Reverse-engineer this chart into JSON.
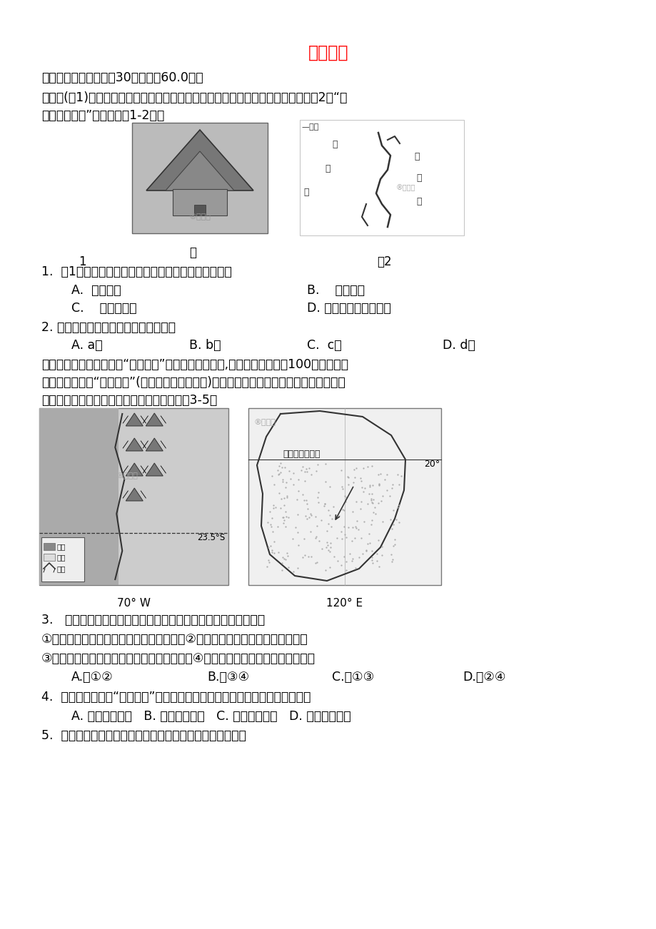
{
  "title": "地理试题",
  "title_color": "#FF0000",
  "bg_color": "#FFFFFF",
  "text_color": "#000000",
  "section1": "一、单选题（本大题入30小题，入60.0分）",
  "para1": "合掌造(图1)是日本的一种木造建筑物，屋顶厚且陨，以便适应当地的地理环境。图2为“日",
  "para1b": "本轮廓示意图”。读图回答1-2题。",
  "fig_label_tu": "图",
  "fig_label_1": "1",
  "fig_label_2": "图2",
  "q1": "1.  图1所示建筑物的屋顶造型设计是为了适应当地（）",
  "q1a": "A.  旱灾频发",
  "q1b": "B.    冬季暴雪",
  "q1c": "C.    多洪涝灾害",
  "q1d": "D. 地震、火山活动频繁",
  "q2": "2. 下列四地中，合掌造最可能位于（）",
  "q2a": "A. a地",
  "q2b": "B. b地",
  "q2c": "C.  c地",
  "q2d": "D. d地",
  "para2": "下列左图沙漠为被称为为“世界干极”的智利塔卡马沙漠,但是这里却生活着100多万人而且",
  "para2b": "每隔一段时间，“沙漠开花”(即沙漠中的种子发芽)往往会和厄尔尼诺现象相伴发生。下右图",
  "para2c": "为西澳大利亚沙漠图，人烟稀少。读图，完成3-5题",
  "fig_bottom_label1": "70° W",
  "fig_bottom_label2": "120° E",
  "legend1": "海洋",
  "legend2": "沙漠",
  "legend3": "山脉",
  "lat_label": "23.5°S",
  "lat_label2": "20°",
  "map2_label": "西澳大利亚沙漠",
  "q3": "3.   阿塔卡马沙漠比西澳大利亚沙漠降水更少，下列与其相关的是",
  "q3_sub1": "①阿塔卡马沙漠距赤道较远，上升气流较弱②阿塔卡马沙漠受地形的影响更明量",
  "q3_sub2": "③西澳大利亚沙漠受东南信风控制的时间更短④西澳大利亚沙漠受寢流的影响更小",
  "q3a": "A.、①②",
  "q3b": "B.、③④",
  "q3c": "C.、①③",
  "q3d": "D.、②④",
  "q4": "4.  厄尔尼诺现象和“沙漠开花”往往同时出现，其主要原因是厄尔尼诺现象导致",
  "q4a": "A. 该地气候变暖   B. 该地降水增多   C. 山区融水增多   D. 昼夜温差增大",
  "q5": "5.  阿塔卡马沙漠比西澳大利亚沙漠人口密度大的主要原因是"
}
